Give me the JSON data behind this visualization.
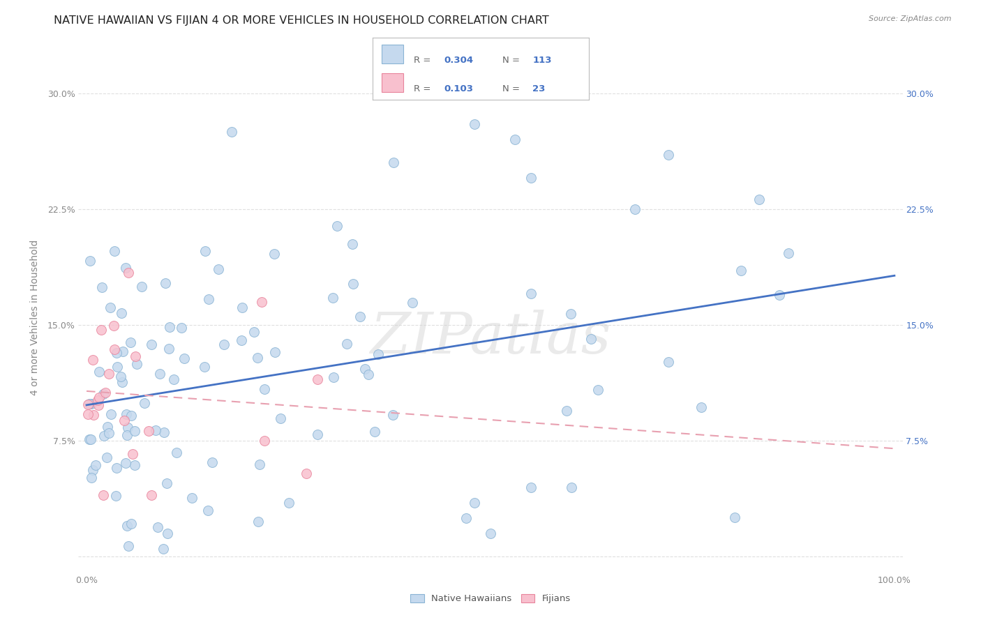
{
  "title": "NATIVE HAWAIIAN VS FIJIAN 4 OR MORE VEHICLES IN HOUSEHOLD CORRELATION CHART",
  "source": "Source: ZipAtlas.com",
  "ylabel": "4 or more Vehicles in Household",
  "hawaiian_color": "#c5d9ee",
  "hawaiian_edge": "#8ab4d4",
  "fijian_color": "#f8c0ce",
  "fijian_edge": "#e8849c",
  "trend_blue": "#4472c4",
  "trend_pink": "#e8a0b0",
  "watermark": "ZIPatlas",
  "legend_r1": "0.304",
  "legend_n1": "113",
  "legend_r2": "0.103",
  "legend_n2": "23",
  "background_color": "#ffffff",
  "grid_color": "#e0e0e0",
  "right_tick_color": "#4472c4",
  "left_tick_color": "#888888",
  "hawaiian_size": 100,
  "fijian_size": 100,
  "title_fontsize": 11.5,
  "axis_label_fontsize": 10,
  "tick_fontsize": 9,
  "source_fontsize": 8
}
